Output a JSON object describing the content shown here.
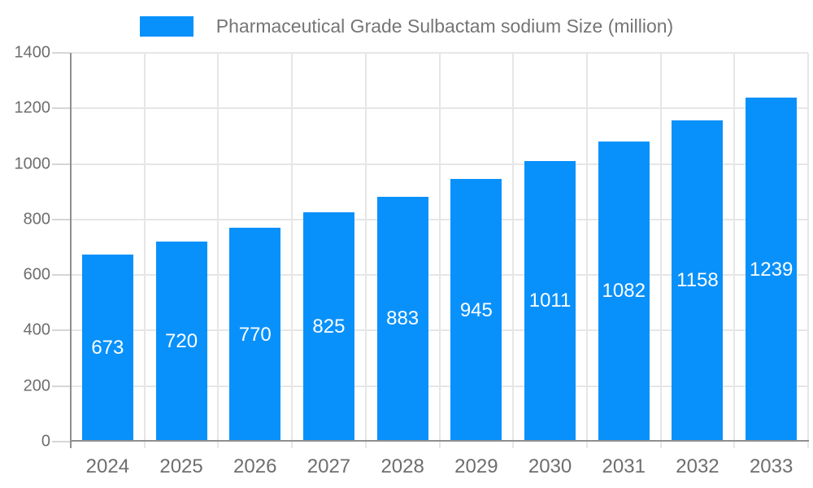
{
  "legend": {
    "label": "Pharmaceutical Grade Sulbactam sodium Size (million)"
  },
  "chart_data": {
    "type": "bar",
    "title": "Pharmaceutical Grade Sulbactam sodium Size (million)",
    "categories": [
      "2024",
      "2025",
      "2026",
      "2027",
      "2028",
      "2029",
      "2030",
      "2031",
      "2032",
      "2033"
    ],
    "values": [
      673,
      720,
      770,
      825,
      883,
      945,
      1011,
      1082,
      1158,
      1239
    ],
    "xlabel": "",
    "ylabel": "",
    "ylim": [
      0,
      1400
    ],
    "yticks": [
      0,
      200,
      400,
      600,
      800,
      1000,
      1200,
      1400
    ],
    "grid": true,
    "legend_position": "top-center",
    "bar_labels_inside": true,
    "colors": {
      "bar": "#0991fb",
      "bar_label": "#ffffff",
      "axis_line": "#8f8f8f",
      "gridline": "#e6e6e6",
      "tick_label": "#6e6e6e",
      "legend_text": "#757575",
      "background": "#ffffff"
    }
  }
}
